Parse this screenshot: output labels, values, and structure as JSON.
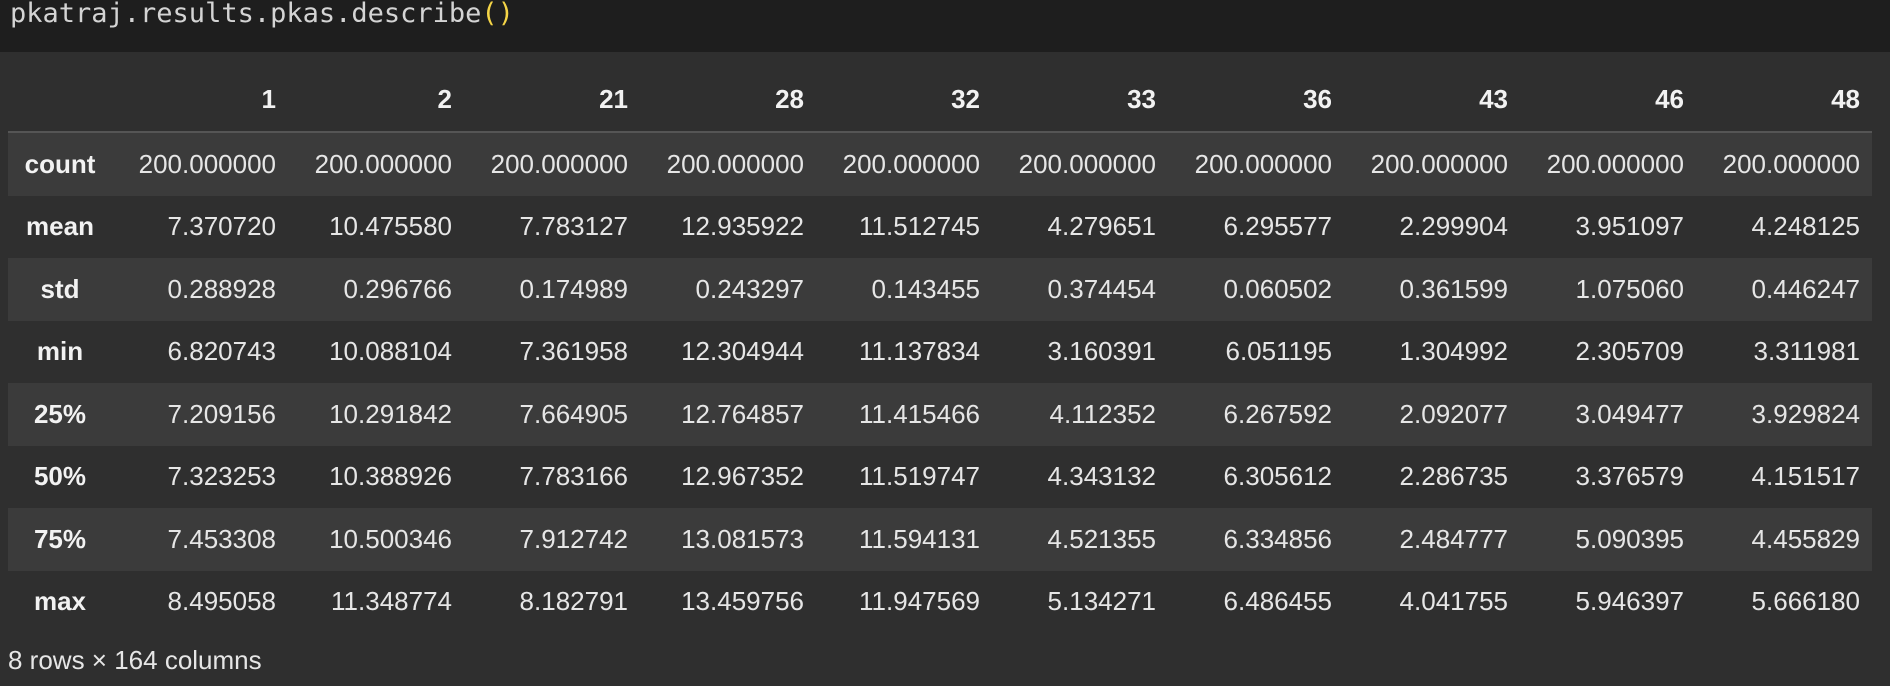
{
  "code_cell": {
    "code_text": "pkatraj.results.pkas.describe",
    "call_parens": "()"
  },
  "table": {
    "columns": [
      "1",
      "2",
      "21",
      "28",
      "32",
      "33",
      "36",
      "43",
      "46",
      "48"
    ],
    "rows": [
      {
        "label": "count",
        "values": [
          "200.000000",
          "200.000000",
          "200.000000",
          "200.000000",
          "200.000000",
          "200.000000",
          "200.000000",
          "200.000000",
          "200.000000",
          "200.000000"
        ]
      },
      {
        "label": "mean",
        "values": [
          "7.370720",
          "10.475580",
          "7.783127",
          "12.935922",
          "11.512745",
          "4.279651",
          "6.295577",
          "2.299904",
          "3.951097",
          "4.248125"
        ]
      },
      {
        "label": "std",
        "values": [
          "0.288928",
          "0.296766",
          "0.174989",
          "0.243297",
          "0.143455",
          "0.374454",
          "0.060502",
          "0.361599",
          "1.075060",
          "0.446247"
        ]
      },
      {
        "label": "min",
        "values": [
          "6.820743",
          "10.088104",
          "7.361958",
          "12.304944",
          "11.137834",
          "3.160391",
          "6.051195",
          "1.304992",
          "2.305709",
          "3.311981"
        ]
      },
      {
        "label": "25%",
        "values": [
          "7.209156",
          "10.291842",
          "7.664905",
          "12.764857",
          "11.415466",
          "4.112352",
          "6.267592",
          "2.092077",
          "3.049477",
          "3.929824"
        ]
      },
      {
        "label": "50%",
        "values": [
          "7.323253",
          "10.388926",
          "7.783166",
          "12.967352",
          "11.519747",
          "4.343132",
          "6.305612",
          "2.286735",
          "3.376579",
          "4.151517"
        ]
      },
      {
        "label": "75%",
        "values": [
          "7.453308",
          "10.500346",
          "7.912742",
          "13.081573",
          "11.594131",
          "4.521355",
          "6.334856",
          "2.484777",
          "5.090395",
          "4.455829"
        ]
      },
      {
        "label": "max",
        "values": [
          "8.495058",
          "11.348774",
          "8.182791",
          "13.459756",
          "11.947569",
          "5.134271",
          "6.486455",
          "4.041755",
          "5.946397",
          "5.666180"
        ]
      }
    ]
  },
  "shape_note": "8 rows × 164 columns",
  "colors": {
    "code_background": "#1e1e1e",
    "output_background": "#2f2f2f",
    "stripe_row": "#3b3b3b",
    "paren_accent": "#f5d547",
    "text": "#e6e6e6"
  }
}
